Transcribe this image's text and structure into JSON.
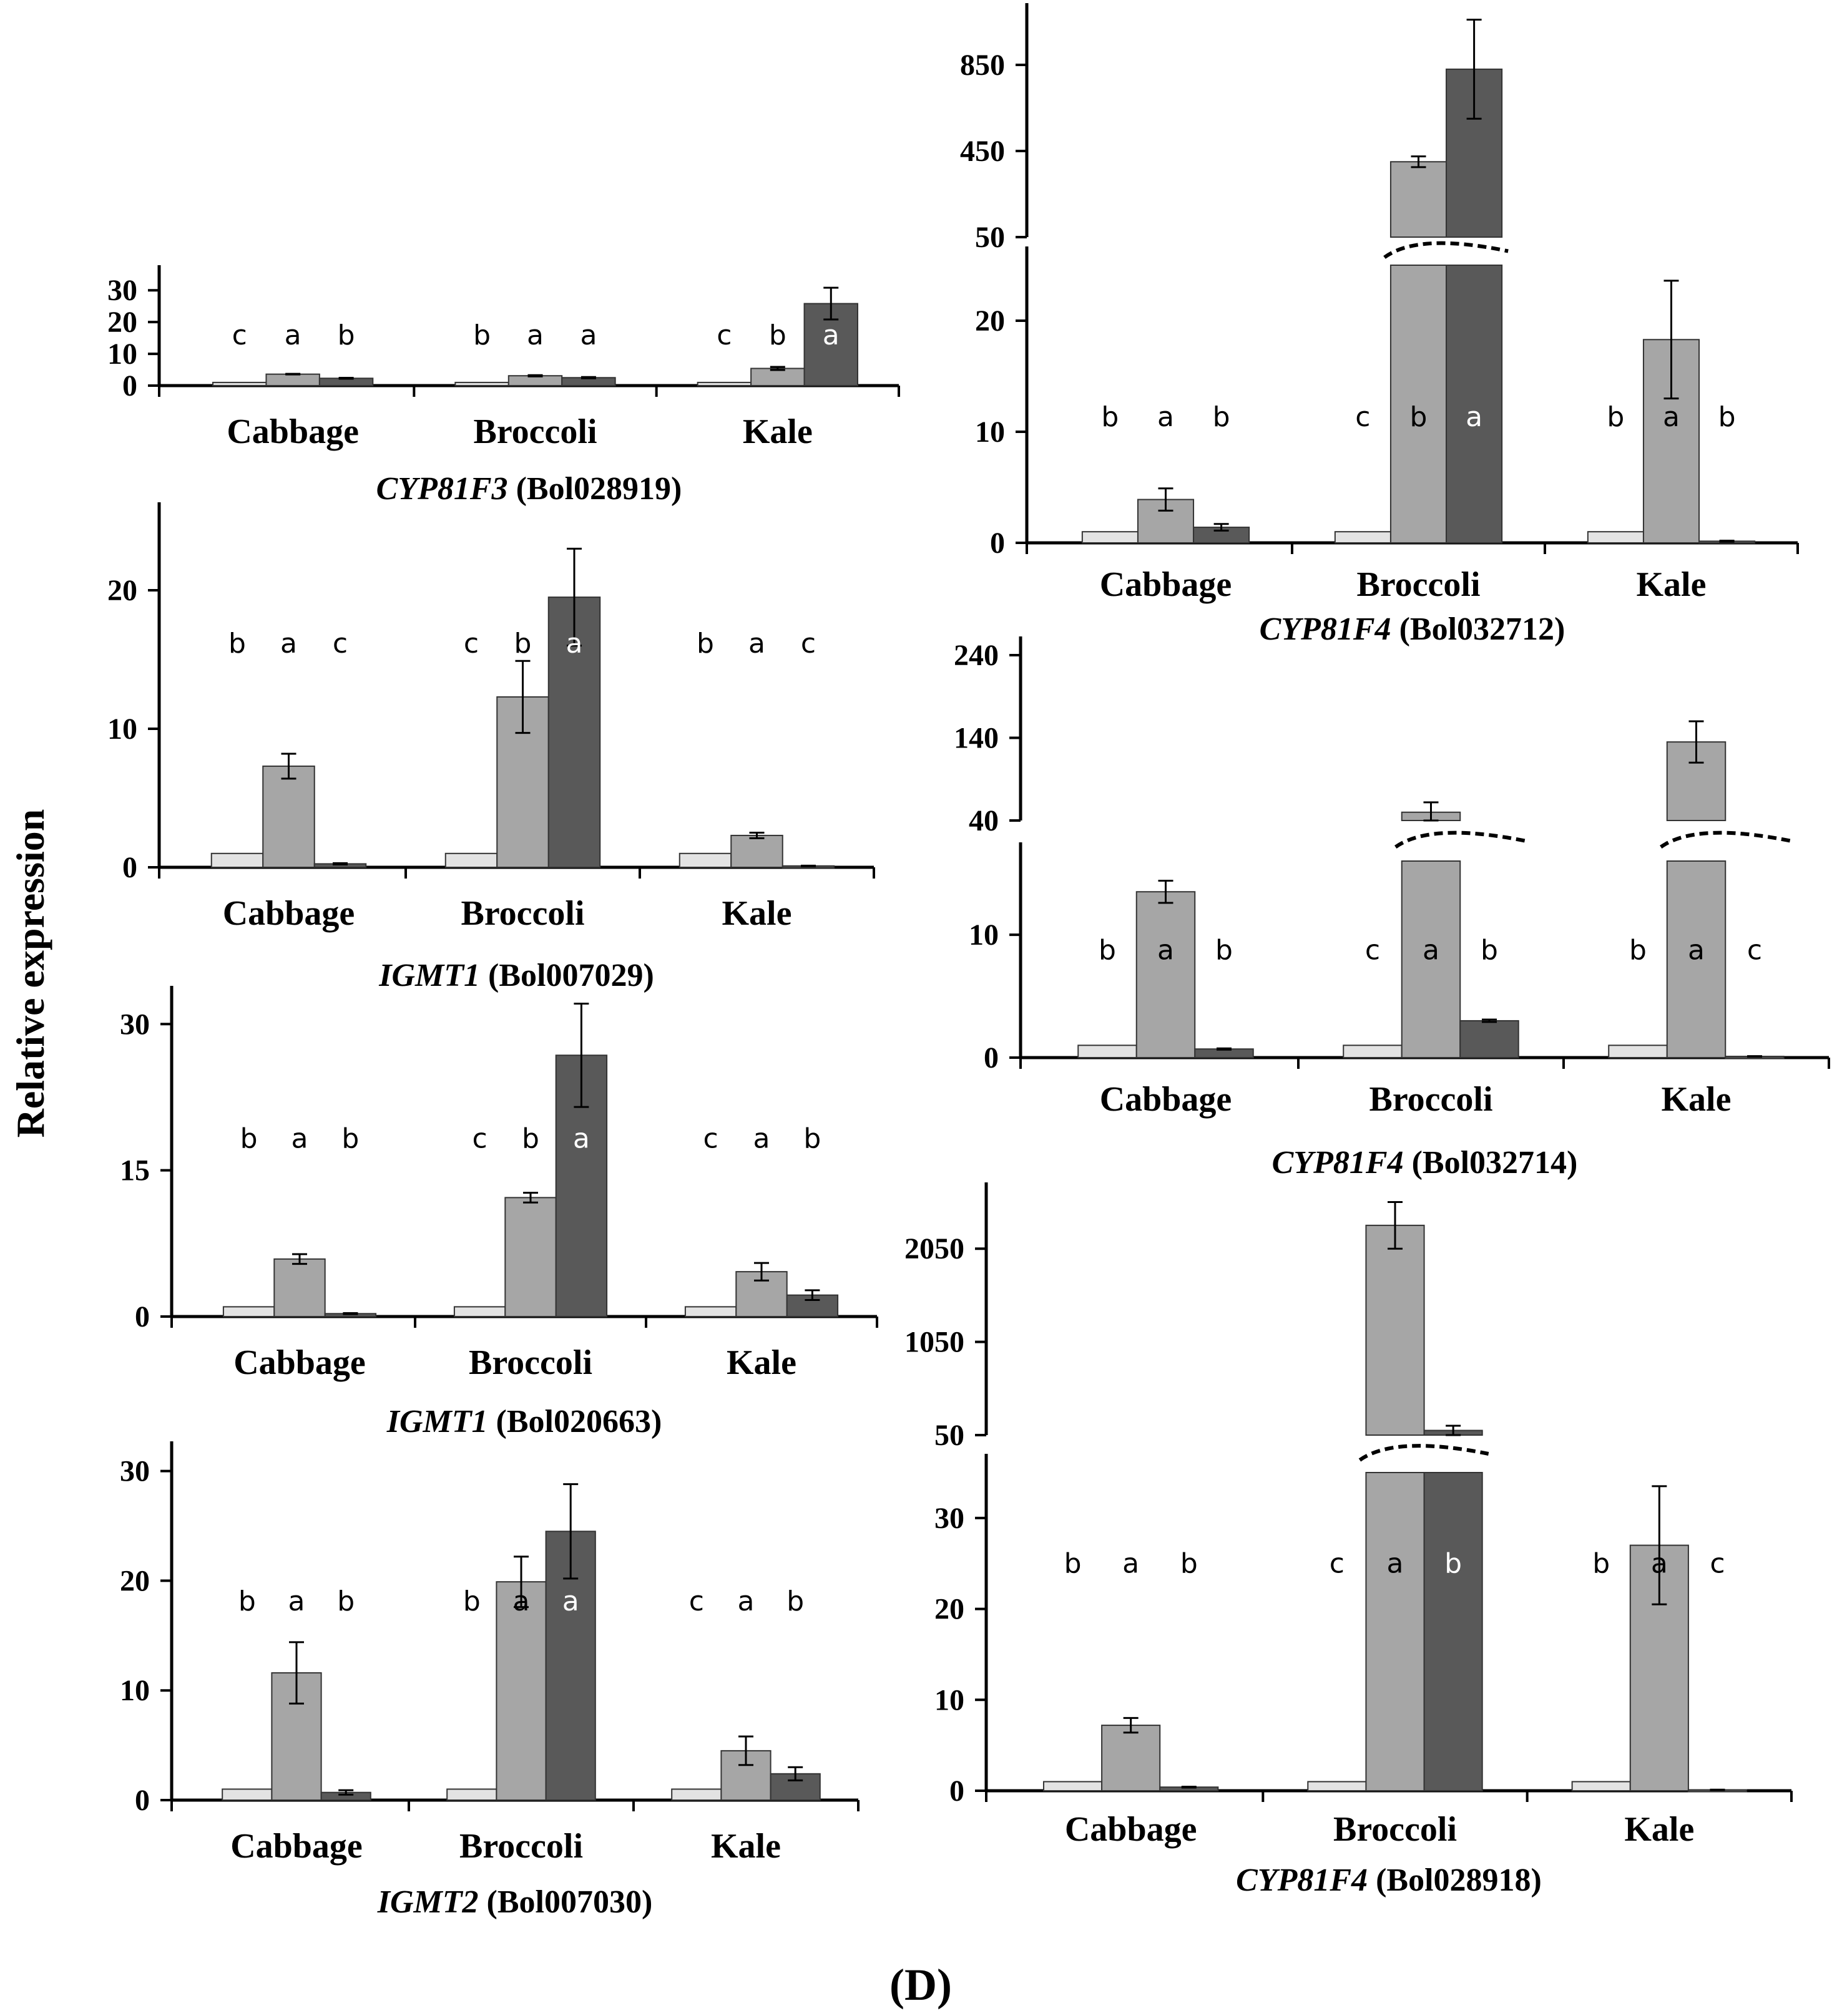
{
  "figure": {
    "ylabel": "Relative expression",
    "panel_label": "(D)",
    "colors": {
      "s1": "#e3e3e3",
      "s2": "#a6a6a6",
      "s3": "#595959",
      "edge": "#333333",
      "axis": "#000000"
    }
  },
  "chart_data": [
    {
      "type": "bar",
      "gene_italic": "CYP81F3",
      "gene_id": " (Bol028919)",
      "categories": [
        "Cabbage",
        "Broccoli",
        "Kale"
      ],
      "series": [
        {
          "name": "s1",
          "values": [
            1,
            1,
            1
          ],
          "errors": [
            0,
            0,
            0
          ]
        },
        {
          "name": "s2",
          "values": [
            3.6,
            3.1,
            5.4
          ],
          "errors": [
            0.1,
            0.2,
            0.5
          ]
        },
        {
          "name": "s3",
          "values": [
            2.3,
            2.5,
            25.8
          ],
          "errors": [
            0.15,
            0.2,
            5.0
          ]
        }
      ],
      "letters": [
        [
          "c",
          "a",
          "b"
        ],
        [
          "b",
          "a",
          "a"
        ],
        [
          "c",
          "b",
          "a"
        ]
      ],
      "letter_y": 13.0,
      "yticks": [
        0,
        10,
        20,
        30
      ],
      "ylim": [
        0,
        32
      ]
    },
    {
      "type": "bar",
      "gene_italic": "IGMT1",
      "gene_id": " (Bol007029)",
      "categories": [
        "Cabbage",
        "Broccoli",
        "Kale"
      ],
      "series": [
        {
          "name": "s1",
          "values": [
            1,
            1,
            1
          ],
          "errors": [
            0,
            0,
            0
          ]
        },
        {
          "name": "s2",
          "values": [
            7.3,
            12.3,
            2.3
          ],
          "errors": [
            0.9,
            2.6,
            0.2
          ]
        },
        {
          "name": "s3",
          "values": [
            0.25,
            19.5,
            0.1
          ],
          "errors": [
            0.05,
            3.5,
            0.02
          ]
        }
      ],
      "letters": [
        [
          "b",
          "a",
          "c"
        ],
        [
          "c",
          "b",
          "a"
        ],
        [
          "b",
          "a",
          "c"
        ]
      ],
      "letter_y": 15.5,
      "yticks": [
        0,
        10,
        20
      ],
      "ylim": [
        0,
        25
      ]
    },
    {
      "type": "bar",
      "gene_italic": "IGMT1",
      "gene_id": " (Bol020663)",
      "categories": [
        "Cabbage",
        "Broccoli",
        "Kale"
      ],
      "series": [
        {
          "name": "s1",
          "values": [
            1,
            1,
            1
          ],
          "errors": [
            0,
            0,
            0
          ]
        },
        {
          "name": "s2",
          "values": [
            5.9,
            12.2,
            4.6
          ],
          "errors": [
            0.5,
            0.5,
            0.9
          ]
        },
        {
          "name": "s3",
          "values": [
            0.3,
            26.8,
            2.2
          ],
          "errors": [
            0.05,
            5.3,
            0.5
          ]
        }
      ],
      "letters": [
        [
          "b",
          "a",
          "b"
        ],
        [
          "c",
          "b",
          "a"
        ],
        [
          "c",
          "a",
          "b"
        ]
      ],
      "letter_y": 17.3,
      "yticks": [
        0,
        15,
        30
      ],
      "ylim": [
        0,
        32
      ]
    },
    {
      "type": "bar",
      "gene_italic": "IGMT2",
      "gene_id": " (Bol007030)",
      "categories": [
        "Cabbage",
        "Broccoli",
        "Kale"
      ],
      "series": [
        {
          "name": "s1",
          "values": [
            1,
            1,
            1
          ],
          "errors": [
            0,
            0,
            0
          ]
        },
        {
          "name": "s2",
          "values": [
            11.6,
            19.9,
            4.5
          ],
          "errors": [
            2.8,
            2.3,
            1.3
          ]
        },
        {
          "name": "s3",
          "values": [
            0.7,
            24.5,
            2.4
          ],
          "errors": [
            0.2,
            4.3,
            0.6
          ]
        }
      ],
      "letters": [
        [
          "b",
          "a",
          "b"
        ],
        [
          "b",
          "a",
          "a"
        ],
        [
          "c",
          "a",
          "b"
        ]
      ],
      "letter_y": 17.3,
      "yticks": [
        0,
        10,
        20,
        30
      ],
      "ylim": [
        0,
        31
      ]
    },
    {
      "type": "bar",
      "broken_axis": true,
      "gene_italic": "CYP81F4",
      "gene_id": " (Bol032712)",
      "categories": [
        "Cabbage",
        "Broccoli",
        "Kale"
      ],
      "series": [
        {
          "name": "s1",
          "values": [
            1,
            1,
            1
          ],
          "errors": [
            0,
            0,
            0
          ]
        },
        {
          "name": "s2",
          "values": [
            3.9,
            400,
            18.3
          ],
          "errors": [
            1.0,
            25,
            5.3
          ]
        },
        {
          "name": "s3",
          "values": [
            1.4,
            830,
            0.15
          ],
          "errors": [
            0.3,
            230,
            0.05
          ]
        }
      ],
      "letters": [
        [
          "b",
          "a",
          "b"
        ],
        [
          "c",
          "b",
          "a"
        ],
        [
          "b",
          "a",
          "b"
        ]
      ],
      "letter_y": 10.5,
      "yticks_lower": [
        0,
        10,
        20
      ],
      "ylim_lower": [
        0,
        25
      ],
      "yticks_upper": [
        50,
        450,
        850
      ],
      "ylim_upper": [
        50,
        1050
      ]
    },
    {
      "type": "bar",
      "broken_axis": true,
      "gene_italic": "CYP81F4",
      "gene_id": " (Bol032714)",
      "categories": [
        "Cabbage",
        "Broccoli",
        "Kale"
      ],
      "series": [
        {
          "name": "s1",
          "values": [
            1,
            1,
            1
          ],
          "errors": [
            0,
            0,
            0
          ]
        },
        {
          "name": "s2",
          "values": [
            13.5,
            50,
            135
          ],
          "errors": [
            0.9,
            12,
            25
          ]
        },
        {
          "name": "s3",
          "values": [
            0.7,
            3.0,
            0.1
          ],
          "errors": [
            0.05,
            0.1,
            0.02
          ]
        }
      ],
      "letters": [
        [
          "b",
          "a",
          "b"
        ],
        [
          "c",
          "a",
          "b"
        ],
        [
          "b",
          "a",
          "c"
        ]
      ],
      "letter_y": 8.0,
      "yticks_lower": [
        0,
        10
      ],
      "ylim_lower": [
        0,
        16
      ],
      "yticks_upper": [
        40,
        140,
        240
      ],
      "ylim_upper": [
        40,
        240
      ]
    },
    {
      "type": "bar",
      "broken_axis": true,
      "gene_italic": "CYP81F4",
      "gene_id": " (Bol028918)",
      "categories": [
        "Cabbage",
        "Broccoli",
        "Kale"
      ],
      "series": [
        {
          "name": "s1",
          "values": [
            1,
            1,
            1
          ],
          "errors": [
            0,
            0,
            0
          ]
        },
        {
          "name": "s2",
          "values": [
            7.2,
            2300,
            27.0
          ],
          "errors": [
            0.8,
            250,
            6.5
          ]
        },
        {
          "name": "s3",
          "values": [
            0.4,
            100,
            0.1
          ],
          "errors": [
            0.05,
            50,
            0.02
          ]
        }
      ],
      "letters": [
        [
          "b",
          "a",
          "b"
        ],
        [
          "c",
          "a",
          "b"
        ],
        [
          "b",
          "a",
          "c"
        ]
      ],
      "letter_y": 24.0,
      "yticks_lower": [
        0,
        10,
        20,
        30
      ],
      "ylim_lower": [
        0,
        35
      ],
      "yticks_upper": [
        50,
        1050,
        2050
      ],
      "ylim_upper": [
        50,
        2560
      ]
    }
  ]
}
